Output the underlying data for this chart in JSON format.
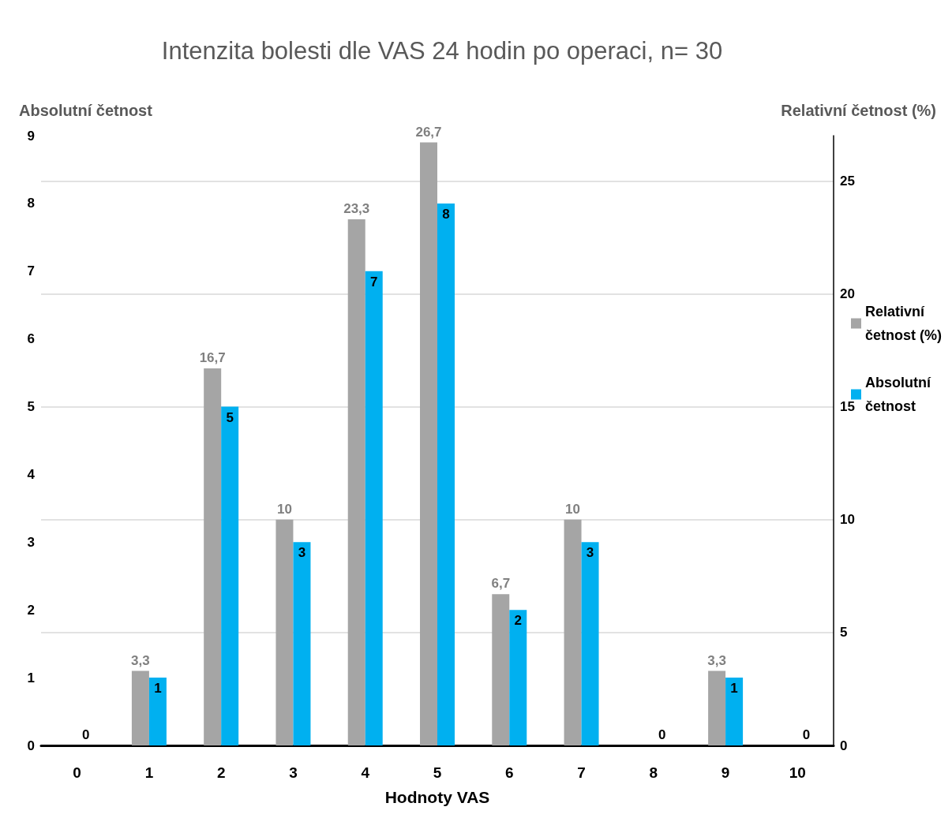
{
  "chart_data": {
    "type": "bar",
    "title": "Intenzita bolesti dle VAS 24 hodin po operaci, n= 30",
    "xlabel": "Hodnoty VAS",
    "ylabel": "Absolutní četnost",
    "y2label": "Relativní četnost (%)",
    "categories": [
      "0",
      "1",
      "2",
      "3",
      "4",
      "5",
      "6",
      "7",
      "8",
      "9",
      "10"
    ],
    "series": [
      {
        "name": "Relativní četnost (%)",
        "color": "#a5a5a5",
        "axis": "y2",
        "values": [
          0,
          3.3,
          16.7,
          10,
          23.3,
          26.7,
          6.7,
          10,
          0,
          3.3,
          0
        ],
        "value_labels": [
          null,
          "3,3",
          "16,7",
          "10",
          "23,3",
          "26,7",
          "6,7",
          "10",
          null,
          "3,3",
          null
        ]
      },
      {
        "name": "Absolutní četnost",
        "color": "#00b0f0",
        "values": [
          0,
          1,
          5,
          3,
          7,
          8,
          2,
          3,
          0,
          1,
          0
        ],
        "value_labels": [
          "0",
          "1",
          "5",
          "3",
          "7",
          "8",
          "2",
          "3",
          "0",
          "1",
          "0"
        ]
      }
    ],
    "ylim": [
      0,
      9
    ],
    "yticks": [
      0,
      1,
      2,
      3,
      4,
      5,
      6,
      7,
      8,
      9
    ],
    "y2lim": [
      0,
      27
    ],
    "y2ticks": [
      0,
      5,
      10,
      15,
      20,
      25
    ],
    "grid": "y",
    "legend": "right"
  }
}
